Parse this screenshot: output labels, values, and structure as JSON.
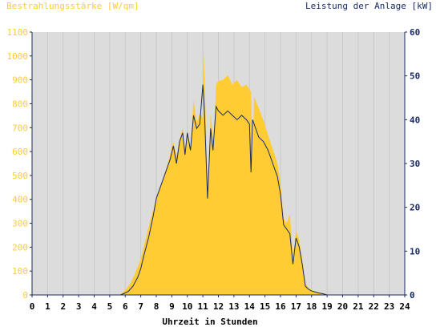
{
  "chart_data": {
    "type": "area",
    "left_axis_title": "Bestrahlungsstärke [W/qm]",
    "right_axis_title": "Leistung der Anlage [kW]",
    "xlabel": "Uhrzeit in Stunden",
    "xlim": [
      0,
      24
    ],
    "ylim_left": [
      0,
      1100
    ],
    "ylim_right": [
      0,
      60
    ],
    "x_ticks": [
      "0",
      "1",
      "2",
      "3",
      "4",
      "5",
      "6",
      "7",
      "8",
      "9",
      "10",
      "11",
      "12",
      "13",
      "14",
      "15",
      "16",
      "17",
      "18",
      "19",
      "20",
      "21",
      "22",
      "23",
      "24"
    ],
    "y_left_ticks": [
      "0",
      "100",
      "200",
      "300",
      "400",
      "500",
      "600",
      "700",
      "800",
      "900",
      "1000",
      "1100"
    ],
    "y_right_ticks": [
      "0",
      "10",
      "20",
      "30",
      "40",
      "50",
      "60"
    ],
    "grid": true,
    "colors": {
      "irradiance": "#ffcc33",
      "power": "#1a2a66",
      "plot_bg": "#dcdcdc",
      "left_axis_text": "#ffcc33",
      "right_axis_text": "#1a2a66",
      "axis_line": "#1a2a66"
    },
    "series": [
      {
        "name": "Bestrahlungsstärke [W/qm]",
        "axis": "left",
        "style": "area",
        "points": [
          [
            0,
            0
          ],
          [
            5.6,
            0
          ],
          [
            5.8,
            8
          ],
          [
            6,
            20
          ],
          [
            6.3,
            45
          ],
          [
            6.6,
            85
          ],
          [
            7,
            150
          ],
          [
            7.3,
            230
          ],
          [
            7.6,
            310
          ],
          [
            8,
            400
          ],
          [
            8.3,
            460
          ],
          [
            8.6,
            520
          ],
          [
            8.9,
            590
          ],
          [
            9.1,
            640
          ],
          [
            9.3,
            580
          ],
          [
            9.5,
            650
          ],
          [
            9.7,
            700
          ],
          [
            9.85,
            600
          ],
          [
            10,
            690
          ],
          [
            10.2,
            610
          ],
          [
            10.4,
            820
          ],
          [
            10.6,
            720
          ],
          [
            10.8,
            760
          ],
          [
            11,
            740
          ],
          [
            11.05,
            1015
          ],
          [
            11.15,
            830
          ],
          [
            11.3,
            420
          ],
          [
            11.5,
            760
          ],
          [
            11.7,
            620
          ],
          [
            11.85,
            880
          ],
          [
            12,
            895
          ],
          [
            12.3,
            900
          ],
          [
            12.6,
            920
          ],
          [
            12.9,
            880
          ],
          [
            13.2,
            900
          ],
          [
            13.5,
            870
          ],
          [
            13.8,
            880
          ],
          [
            14.1,
            850
          ],
          [
            14.2,
            560
          ],
          [
            14.3,
            830
          ],
          [
            14.6,
            780
          ],
          [
            14.9,
            730
          ],
          [
            15.2,
            670
          ],
          [
            15.5,
            610
          ],
          [
            15.8,
            550
          ],
          [
            16,
            470
          ],
          [
            16.2,
            320
          ],
          [
            16.4,
            300
          ],
          [
            16.6,
            340
          ],
          [
            16.8,
            160
          ],
          [
            17,
            270
          ],
          [
            17.2,
            230
          ],
          [
            17.4,
            150
          ],
          [
            17.6,
            50
          ],
          [
            17.8,
            30
          ],
          [
            18,
            20
          ],
          [
            18.5,
            10
          ],
          [
            19,
            3
          ],
          [
            19.3,
            0
          ],
          [
            24,
            0
          ]
        ]
      },
      {
        "name": "Leistung der Anlage [kW]",
        "axis": "right",
        "style": "line",
        "points": [
          [
            0,
            0
          ],
          [
            5.7,
            0
          ],
          [
            5.9,
            0.3
          ],
          [
            6.2,
            0.8
          ],
          [
            6.5,
            2
          ],
          [
            6.8,
            4
          ],
          [
            7,
            6
          ],
          [
            7.2,
            9
          ],
          [
            7.5,
            13
          ],
          [
            7.8,
            18
          ],
          [
            8,
            22
          ],
          [
            8.3,
            25
          ],
          [
            8.6,
            28
          ],
          [
            8.9,
            31
          ],
          [
            9.1,
            34
          ],
          [
            9.3,
            30
          ],
          [
            9.5,
            35
          ],
          [
            9.7,
            37
          ],
          [
            9.85,
            32
          ],
          [
            10,
            37
          ],
          [
            10.2,
            33
          ],
          [
            10.4,
            41
          ],
          [
            10.6,
            38
          ],
          [
            10.8,
            39
          ],
          [
            11,
            48
          ],
          [
            11.1,
            42
          ],
          [
            11.3,
            22
          ],
          [
            11.5,
            38
          ],
          [
            11.65,
            33
          ],
          [
            11.85,
            43
          ],
          [
            12,
            42
          ],
          [
            12.3,
            41
          ],
          [
            12.6,
            42
          ],
          [
            12.9,
            41
          ],
          [
            13.2,
            40
          ],
          [
            13.5,
            41
          ],
          [
            13.8,
            40
          ],
          [
            14,
            39
          ],
          [
            14.1,
            28
          ],
          [
            14.2,
            40
          ],
          [
            14.4,
            38
          ],
          [
            14.6,
            36
          ],
          [
            14.9,
            35
          ],
          [
            15.2,
            33
          ],
          [
            15.5,
            30
          ],
          [
            15.8,
            27
          ],
          [
            16,
            23
          ],
          [
            16.2,
            16
          ],
          [
            16.4,
            15
          ],
          [
            16.6,
            14
          ],
          [
            16.8,
            7
          ],
          [
            17,
            13
          ],
          [
            17.2,
            11
          ],
          [
            17.4,
            7
          ],
          [
            17.6,
            2
          ],
          [
            17.8,
            1.3
          ],
          [
            18,
            0.9
          ],
          [
            18.4,
            0.5
          ],
          [
            18.8,
            0.2
          ],
          [
            19,
            0
          ],
          [
            24,
            0
          ]
        ]
      }
    ]
  }
}
